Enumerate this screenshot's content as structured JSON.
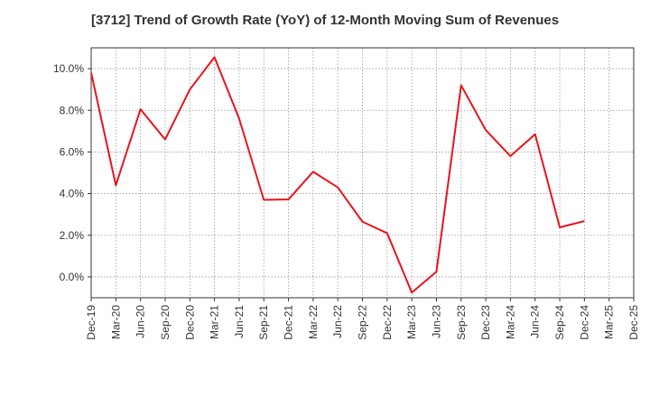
{
  "chart_data": {
    "type": "line",
    "title": "[3712]  Trend of Growth Rate (YoY) of 12-Month Moving Sum of Revenues",
    "xlabel": "",
    "ylabel": "",
    "categories": [
      "Dec-19",
      "Mar-20",
      "Jun-20",
      "Sep-20",
      "Dec-20",
      "Mar-21",
      "Jun-21",
      "Sep-21",
      "Dec-21",
      "Mar-22",
      "Jun-22",
      "Sep-22",
      "Dec-22",
      "Mar-23",
      "Jun-23",
      "Sep-23",
      "Dec-23",
      "Mar-24",
      "Jun-24",
      "Sep-24",
      "Dec-24",
      "Mar-25",
      "Dec-25"
    ],
    "series": [
      {
        "color": "#e8141b",
        "values": [
          9.8,
          4.4,
          8.05,
          6.6,
          9.0,
          10.55,
          7.6,
          3.7,
          3.72,
          5.05,
          4.3,
          2.65,
          2.1,
          -0.75,
          0.25,
          9.2,
          7.05,
          5.8,
          6.85,
          2.38,
          2.68,
          null,
          null
        ]
      }
    ],
    "y_ticks": [
      "0.0%",
      "2.0%",
      "4.0%",
      "6.0%",
      "8.0%",
      "10.0%"
    ],
    "y_tick_values": [
      0,
      2,
      4,
      6,
      8,
      10
    ],
    "ylim": [
      -1.0,
      11.0
    ],
    "grid": true,
    "grid_style": "dotted",
    "legend": "none",
    "colors": {
      "line": "#e8141b",
      "grid": "#999999",
      "axis": "#333333"
    }
  }
}
